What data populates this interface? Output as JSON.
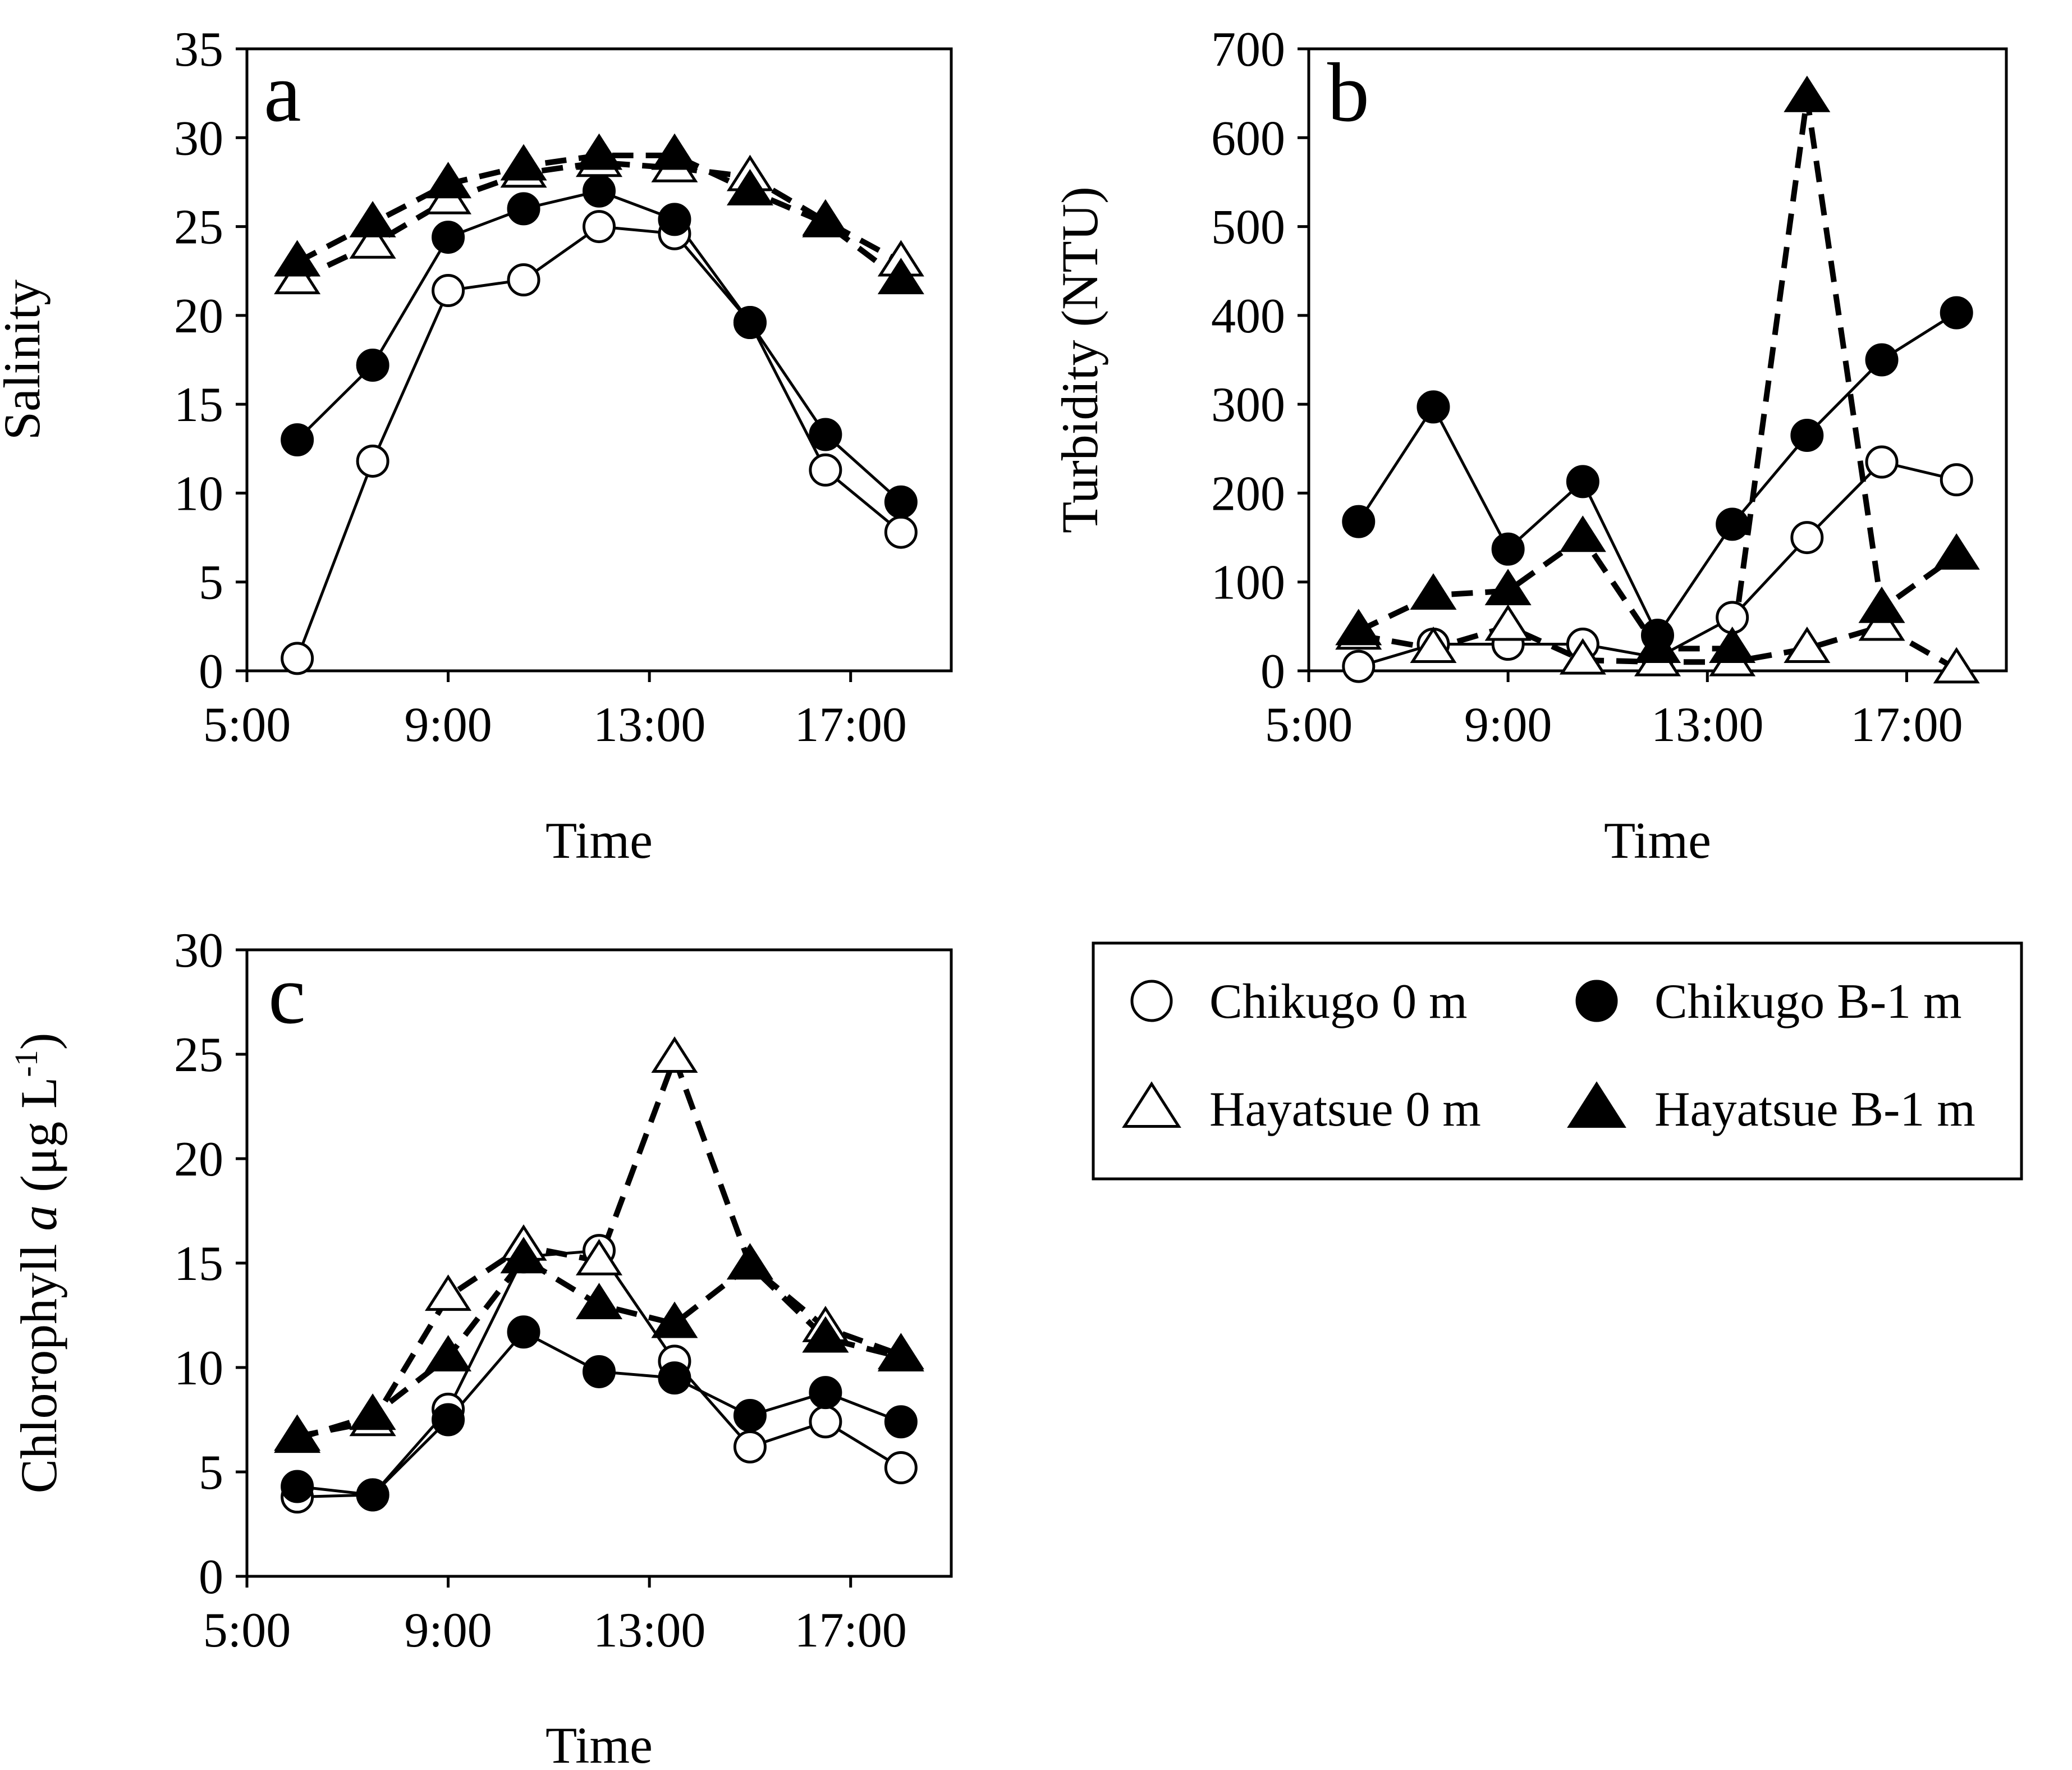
{
  "chart_data": [
    {
      "panel_label": "a",
      "type": "line",
      "xlabel": "Time",
      "ylabel": "Salinity",
      "xlim": [
        5,
        19
      ],
      "ylim": [
        0,
        35
      ],
      "xticks": [
        "5:00",
        "9:00",
        "13:00",
        "17:00"
      ],
      "yticks": [
        "0",
        "5",
        "10",
        "15",
        "20",
        "25",
        "30",
        "35"
      ],
      "x": [
        6.0,
        7.5,
        9.0,
        10.5,
        12.0,
        13.5,
        15.0,
        16.5,
        18.0
      ],
      "series": [
        {
          "key": "ch0",
          "values": [
            0.7,
            11.8,
            21.4,
            22.0,
            25.0,
            24.6,
            19.6,
            11.3,
            7.8
          ]
        },
        {
          "key": "chb",
          "values": [
            13.0,
            17.2,
            24.4,
            26.0,
            27.0,
            25.4,
            19.6,
            13.3,
            9.5
          ]
        },
        {
          "key": "hy0",
          "values": [
            22.0,
            24.0,
            26.5,
            28.0,
            28.6,
            28.3,
            27.8,
            25.3,
            23.0
          ]
        },
        {
          "key": "hyb",
          "values": [
            23.0,
            25.2,
            27.4,
            28.4,
            29.0,
            29.0,
            27.0,
            25.2,
            22.0
          ]
        }
      ]
    },
    {
      "panel_label": "b",
      "type": "line",
      "xlabel": "Time",
      "ylabel": "Turbidity (NTU)",
      "xlim": [
        5,
        19
      ],
      "ylim": [
        0,
        700
      ],
      "xticks": [
        "5:00",
        "9:00",
        "13:00",
        "17:00"
      ],
      "yticks": [
        "0",
        "100",
        "200",
        "300",
        "400",
        "500",
        "600",
        "700"
      ],
      "x": [
        6.0,
        7.5,
        9.0,
        10.5,
        12.0,
        13.5,
        15.0,
        16.5,
        18.0
      ],
      "series": [
        {
          "key": "ch0",
          "values": [
            5,
            30,
            30,
            30,
            15,
            60,
            150,
            235,
            215
          ]
        },
        {
          "key": "chb",
          "values": [
            168,
            297,
            137,
            213,
            40,
            165,
            265,
            350,
            403
          ]
        },
        {
          "key": "hy0",
          "values": [
            40,
            25,
            50,
            12,
            10,
            10,
            25,
            50,
            2
          ]
        },
        {
          "key": "hyb",
          "values": [
            45,
            85,
            90,
            150,
            25,
            25,
            645,
            70,
            130
          ]
        }
      ]
    },
    {
      "panel_label": "c",
      "type": "line",
      "xlabel": "Time",
      "ylabel_prefix": "Chlorophyll ",
      "ylabel_italic": "a",
      "ylabel_units": " (μg L",
      "ylabel_exp": "-1",
      "ylabel_close": ")",
      "xlim": [
        5,
        19
      ],
      "ylim": [
        0,
        30
      ],
      "xticks": [
        "5:00",
        "9:00",
        "13:00",
        "17:00"
      ],
      "yticks": [
        "0",
        "5",
        "10",
        "15",
        "20",
        "25",
        "30"
      ],
      "x": [
        6.0,
        7.5,
        9.0,
        10.5,
        12.0,
        13.5,
        15.0,
        16.5,
        18.0
      ],
      "series": [
        {
          "key": "ch0",
          "values": [
            3.8,
            3.9,
            8.0,
            15.3,
            15.6,
            10.3,
            6.2,
            7.4,
            5.2
          ]
        },
        {
          "key": "chb",
          "values": [
            4.3,
            3.9,
            7.5,
            11.7,
            9.8,
            9.5,
            7.7,
            8.8,
            7.4
          ]
        },
        {
          "key": "hy0",
          "values": [
            6.7,
            7.4,
            13.4,
            15.8,
            15.1,
            24.8,
            14.9,
            11.9,
            10.6
          ]
        },
        {
          "key": "hyb",
          "values": [
            6.6,
            7.7,
            10.5,
            15.2,
            13.0,
            12.1,
            14.9,
            11.4,
            10.5
          ]
        }
      ]
    }
  ],
  "legend": {
    "items": [
      {
        "key": "ch0",
        "label": "Chikugo 0 m",
        "marker": "circle-open"
      },
      {
        "key": "chb",
        "label": "Chikugo B-1 m",
        "marker": "circle-filled"
      },
      {
        "key": "hy0",
        "label": "Hayatsue 0 m",
        "marker": "triangle-open"
      },
      {
        "key": "hyb",
        "label": "Hayatsue B-1 m",
        "marker": "triangle-filled"
      }
    ]
  },
  "series_styles": {
    "ch0": {
      "marker": "circle",
      "fill": "#ffffff",
      "line": "solid"
    },
    "chb": {
      "marker": "circle",
      "fill": "#000000",
      "line": "solid"
    },
    "hy0": {
      "marker": "triangle",
      "fill": "#ffffff",
      "line": "dashed"
    },
    "hyb": {
      "marker": "triangle",
      "fill": "#000000",
      "line": "dashed"
    }
  }
}
